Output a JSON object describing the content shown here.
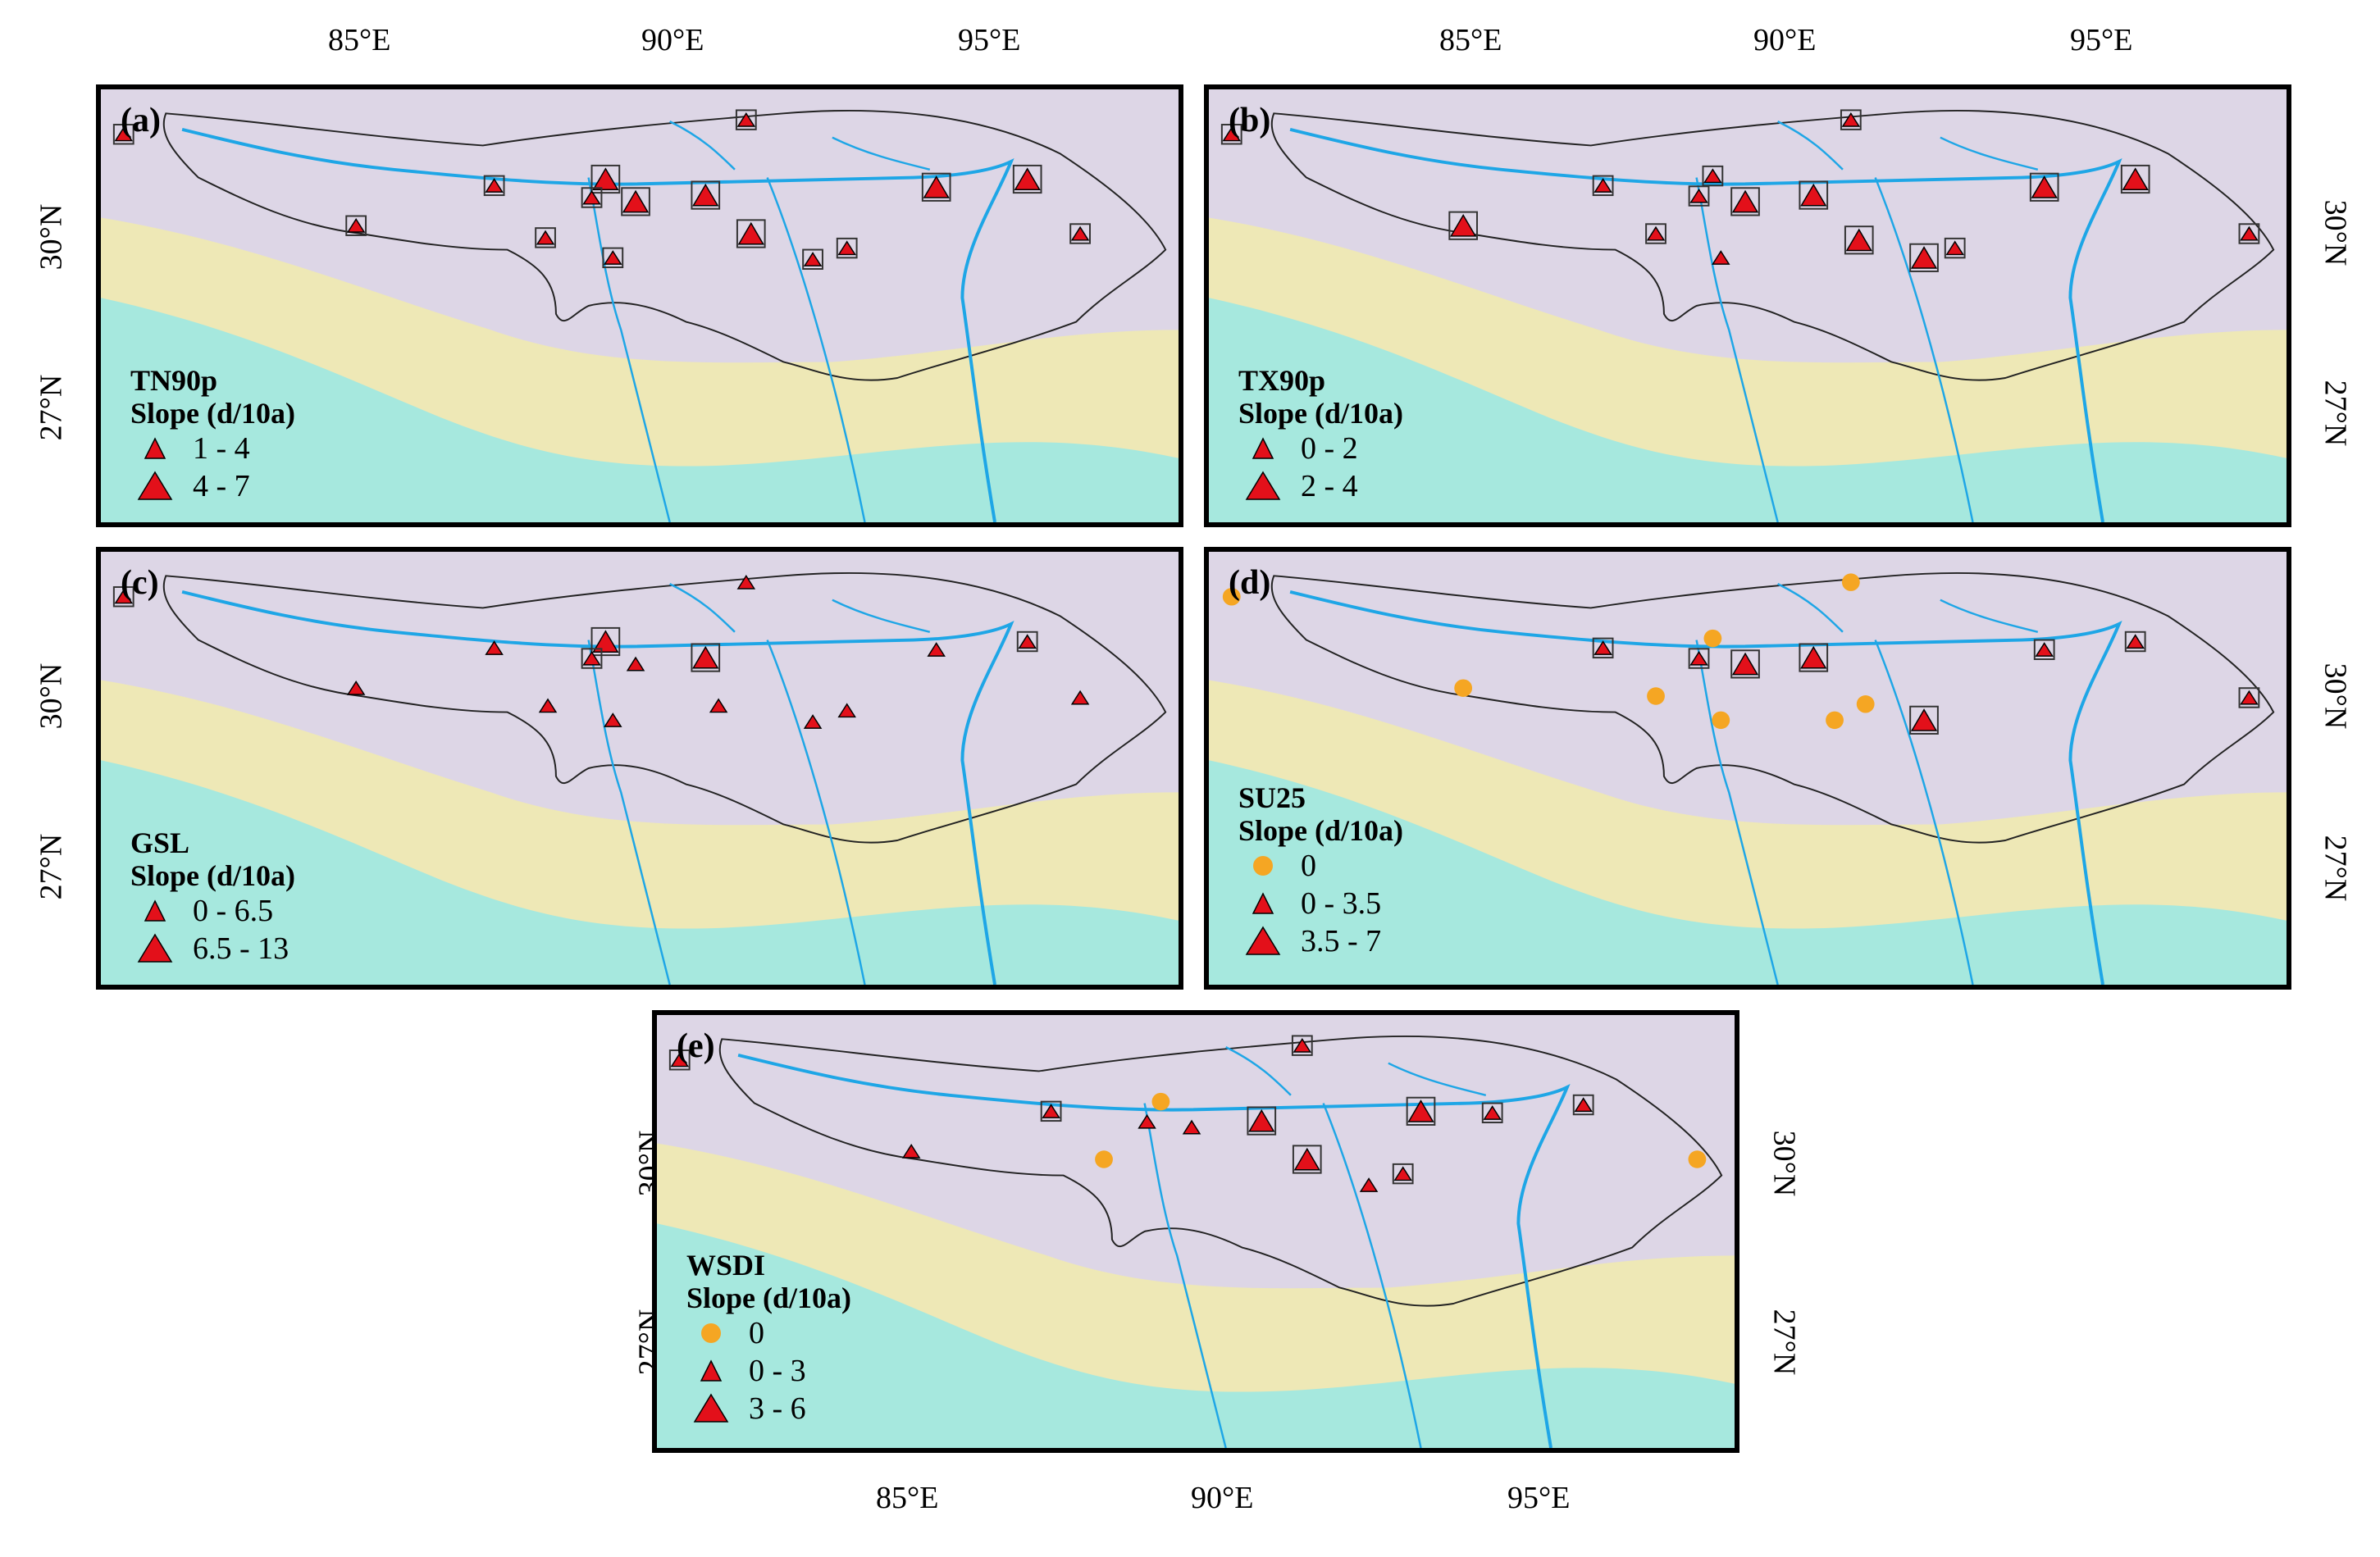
{
  "top_lon_labels": {
    "left": [
      "85°E",
      "90°E",
      "95°E"
    ],
    "right": [
      "85°E",
      "90°E",
      "95°E"
    ]
  },
  "bottom_lon_labels": [
    "85°E",
    "90°E",
    "95°E"
  ],
  "lat_labels": [
    "30°N",
    "27°N"
  ],
  "colors": {
    "triangle": "#e3101a",
    "circle": "#f5a623",
    "river": "#1ea6e6",
    "ocean": "#a6e8de",
    "highland": "#ddd6e6",
    "lowland": "#eee8b6",
    "station_box": "#333333"
  },
  "panels": [
    {
      "id": "a",
      "letter": "(a)",
      "title": "TN90p",
      "subtitle": "Slope (d/10a)",
      "legend": [
        {
          "symbol": "small-triangle",
          "label": "1 - 4"
        },
        {
          "symbol": "large-triangle",
          "label": "4 - 7"
        }
      ]
    },
    {
      "id": "b",
      "letter": "(b)",
      "title": "TX90p",
      "subtitle": "Slope (d/10a)",
      "legend": [
        {
          "symbol": "small-triangle",
          "label": "0 - 2"
        },
        {
          "symbol": "large-triangle",
          "label": "2 - 4"
        }
      ]
    },
    {
      "id": "c",
      "letter": "(c)",
      "title": "GSL",
      "subtitle": "Slope (d/10a)",
      "legend": [
        {
          "symbol": "small-triangle",
          "label": "0 - 6.5"
        },
        {
          "symbol": "large-triangle",
          "label": "6.5 - 13"
        }
      ]
    },
    {
      "id": "d",
      "letter": "(d)",
      "title": "SU25",
      "subtitle": "Slope (d/10a)",
      "legend": [
        {
          "symbol": "circle",
          "label": "0"
        },
        {
          "symbol": "small-triangle",
          "label": "0 - 3.5"
        },
        {
          "symbol": "large-triangle",
          "label": "3.5 - 7"
        }
      ]
    },
    {
      "id": "e",
      "letter": "(e)",
      "title": "WSDI",
      "subtitle": "Slope (d/10a)",
      "legend": [
        {
          "symbol": "circle",
          "label": "0"
        },
        {
          "symbol": "small-triangle",
          "label": "0 - 3"
        },
        {
          "symbol": "large-triangle",
          "label": "3 - 6"
        }
      ]
    }
  ]
}
